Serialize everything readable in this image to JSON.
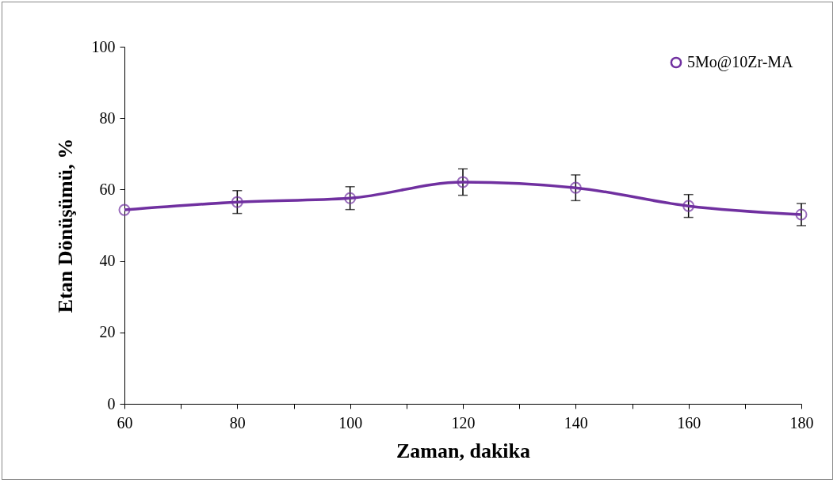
{
  "chart_data": {
    "type": "line",
    "xlabel": "Zaman, dakika",
    "ylabel": "Etan Dönüşümü, %",
    "x": [
      60,
      80,
      100,
      120,
      140,
      160,
      180
    ],
    "series": [
      {
        "name": "5Mo@10Zr-MA",
        "color": "#7030a0",
        "values": [
          54.3,
          56.5,
          57.6,
          62.1,
          60.5,
          55.4,
          53.0
        ],
        "errors": [
          null,
          3.2,
          3.2,
          3.7,
          3.6,
          3.2,
          3.1
        ]
      }
    ],
    "xlim": [
      60,
      180
    ],
    "ylim": [
      0,
      100
    ],
    "xticks": [
      60,
      {
        "value": 70,
        "label": null
      },
      80,
      {
        "value": 90,
        "label": null
      },
      100,
      {
        "value": 110,
        "label": null
      },
      120,
      {
        "value": 130,
        "label": null
      },
      140,
      {
        "value": 150,
        "label": null
      },
      160,
      {
        "value": 170,
        "label": null
      },
      180
    ],
    "yticks": [
      0,
      20,
      40,
      60,
      80,
      100
    ],
    "marker": "circle",
    "line_style": "solid",
    "legend": "top right",
    "grid": false
  }
}
